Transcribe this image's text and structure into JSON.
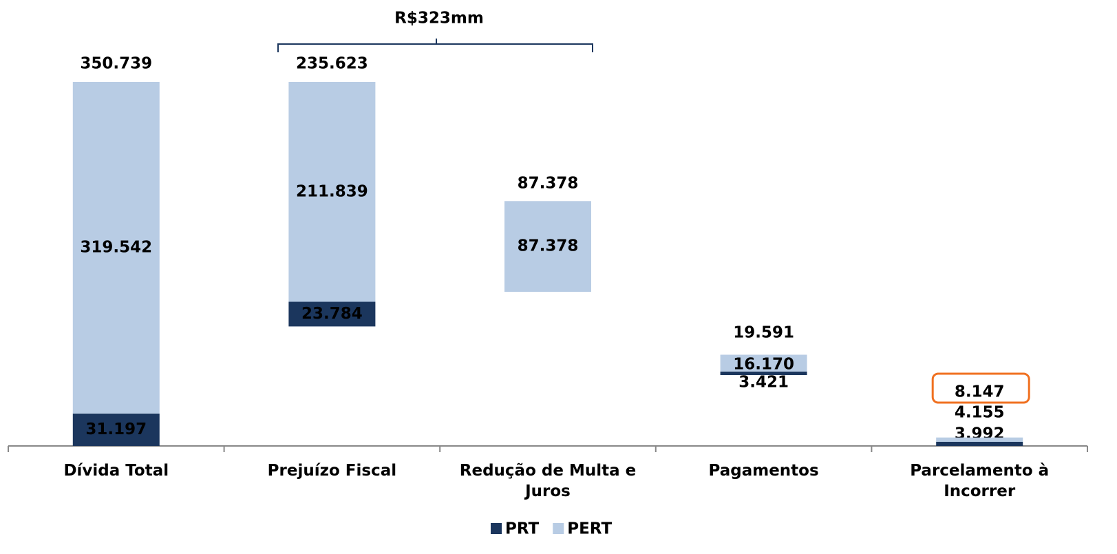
{
  "chart_data": {
    "type": "waterfall",
    "annotation": "R$323mm",
    "categories": [
      "Dívida Total",
      "Prejuízo Fiscal",
      "Redução de Multa e Juros",
      "Pagamentos",
      "Parcelamento à Incorrer"
    ],
    "bases": [
      0,
      115116,
      148500,
      68300,
      0
    ],
    "series": [
      {
        "name": "PRT",
        "color": "#1b365d",
        "values": [
          31197,
          23784,
          null,
          3421,
          3992
        ],
        "value_labels": [
          "31.197",
          "23.784",
          null,
          "3.421",
          "3.992"
        ]
      },
      {
        "name": "PERT",
        "color": "#b8cce4",
        "values": [
          319542,
          211839,
          87378,
          16170,
          4155
        ],
        "value_labels": [
          "319.542",
          "211.839",
          "87.378",
          "16.170",
          "4.155"
        ]
      }
    ],
    "totals": [
      350739,
      235623,
      87378,
      19591,
      8147
    ],
    "total_labels": [
      "350.739",
      "235.623",
      "87.378",
      "19.591",
      "8.147"
    ],
    "highlight_color": "#f07020"
  }
}
